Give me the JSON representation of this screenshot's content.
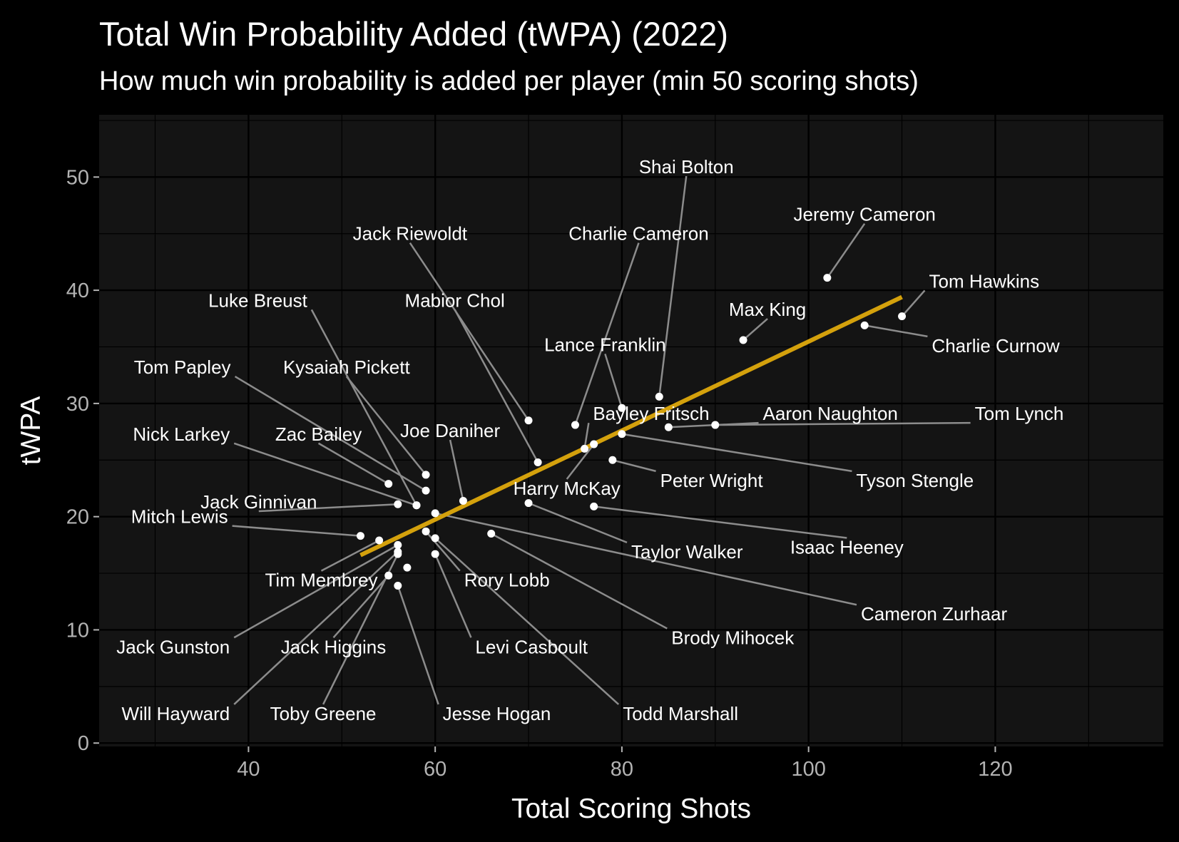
{
  "chart_data": {
    "type": "scatter",
    "title": "Total Win Probability Added (tWPA) (2022)",
    "subtitle": "How much win probability is added per player (min 50 scoring shots)",
    "xlabel": "Total Scoring Shots",
    "ylabel": "tWPA",
    "xlim": [
      24,
      138
    ],
    "ylim": [
      -0.3,
      55.5
    ],
    "x_ticks": [
      40,
      60,
      80,
      100,
      120
    ],
    "y_ticks": [
      0,
      10,
      20,
      30,
      40,
      50
    ],
    "grid": true,
    "legend": "none",
    "trend_line": {
      "x": [
        52,
        110
      ],
      "y": [
        16.6,
        39.4
      ],
      "color": "#d4a10c"
    },
    "colors": {
      "background": "#000000",
      "panel": "#141414",
      "grid": "#000000",
      "point": "#ffffff",
      "connector": "#8c8c8c",
      "tick_text": "#b3b3b3"
    },
    "points": [
      {
        "name": "Shai Bolton",
        "x": 84,
        "y": 30.6,
        "lx": 86.9,
        "ly": 50.9,
        "anchor": "middle"
      },
      {
        "name": "Jeremy Cameron",
        "x": 102,
        "y": 41.1,
        "lx": 106,
        "ly": 46.7,
        "anchor": "middle"
      },
      {
        "name": "Jack Riewoldt",
        "x": 70,
        "y": 28.5,
        "lx": 57.3,
        "ly": 45.0,
        "anchor": "middle"
      },
      {
        "name": "Charlie Cameron",
        "x": 75,
        "y": 28.1,
        "lx": 81.8,
        "ly": 45.0,
        "anchor": "middle"
      },
      {
        "name": "Tom Hawkins",
        "x": 110,
        "y": 37.7,
        "lx": 112.9,
        "ly": 40.8,
        "anchor": "start"
      },
      {
        "name": "Charlie Curnow",
        "x": 106,
        "y": 36.9,
        "lx": 113.2,
        "ly": 35.1,
        "anchor": "start"
      },
      {
        "name": "Max King",
        "x": 93,
        "y": 35.6,
        "lx": 95.6,
        "ly": 38.3,
        "anchor": "middle"
      },
      {
        "name": "Luke Breust",
        "x": 58,
        "y": 21.0,
        "lx": 46.3,
        "ly": 39.1,
        "anchor": "end"
      },
      {
        "name": "Mabior Chol",
        "x": 71,
        "y": 24.8,
        "lx": 62.1,
        "ly": 39.1,
        "anchor": "middle"
      },
      {
        "name": "Lance Franklin",
        "x": 80,
        "y": 29.6,
        "lx": 78.2,
        "ly": 35.2,
        "anchor": "middle"
      },
      {
        "name": "Tom Papley",
        "x": 59,
        "y": 22.3,
        "lx": 38.1,
        "ly": 33.2,
        "anchor": "end"
      },
      {
        "name": "Kysaiah Pickett",
        "x": 59,
        "y": 23.7,
        "lx": 50.5,
        "ly": 33.2,
        "anchor": "middle"
      },
      {
        "name": "Bayley Fritsch",
        "x": 76,
        "y": 26.0,
        "lx": 76.9,
        "ly": 29.1,
        "anchor": "start"
      },
      {
        "name": "Aaron Naughton",
        "x": 85,
        "y": 27.9,
        "lx": 95.1,
        "ly": 29.1,
        "anchor": "start"
      },
      {
        "name": "Tom Lynch",
        "x": 90,
        "y": 28.1,
        "lx": 117.8,
        "ly": 29.1,
        "anchor": "start"
      },
      {
        "name": "Nick Larkey",
        "x": 58,
        "y": 21.0,
        "lx": 38.0,
        "ly": 27.3,
        "anchor": "end"
      },
      {
        "name": "Zac Bailey",
        "x": 55,
        "y": 22.9,
        "lx": 47.5,
        "ly": 27.3,
        "anchor": "middle"
      },
      {
        "name": "Joe Daniher",
        "x": 63,
        "y": 21.4,
        "lx": 61.6,
        "ly": 27.6,
        "anchor": "middle"
      },
      {
        "name": "Harry McKay",
        "x": 77,
        "y": 26.4,
        "lx": 74.1,
        "ly": 22.5,
        "anchor": "middle"
      },
      {
        "name": "Peter Wright",
        "x": 79,
        "y": 25.0,
        "lx": 84.1,
        "ly": 23.2,
        "anchor": "start"
      },
      {
        "name": "Tyson Stengle",
        "x": 80,
        "y": 27.3,
        "lx": 105.1,
        "ly": 23.2,
        "anchor": "start"
      },
      {
        "name": "Jack Ginnivan",
        "x": 56,
        "y": 21.1,
        "lx": 41.1,
        "ly": 21.3,
        "anchor": "middle"
      },
      {
        "name": "Mitch Lewis",
        "x": 52,
        "y": 18.3,
        "lx": 37.8,
        "ly": 20.0,
        "anchor": "end"
      },
      {
        "name": "Isaac Heeney",
        "x": 77,
        "y": 20.9,
        "lx": 104.1,
        "ly": 17.3,
        "anchor": "middle"
      },
      {
        "name": "Taylor Walker",
        "x": 70,
        "y": 21.2,
        "lx": 81.0,
        "ly": 16.9,
        "anchor": "start"
      },
      {
        "name": "Tim Membrey",
        "x": 54,
        "y": 17.9,
        "lx": 47.8,
        "ly": 14.4,
        "anchor": "middle"
      },
      {
        "name": "Rory Lobb",
        "x": 59,
        "y": 18.7,
        "lx": 63.1,
        "ly": 14.4,
        "anchor": "start"
      },
      {
        "name": "Cameron Zurhaar",
        "x": 60,
        "y": 20.3,
        "lx": 105.6,
        "ly": 11.4,
        "anchor": "start"
      },
      {
        "name": "Brody Mihocek",
        "x": 66,
        "y": 18.5,
        "lx": 85.3,
        "ly": 9.3,
        "anchor": "start"
      },
      {
        "name": "Jack Gunston",
        "x": 56,
        "y": 17.5,
        "lx": 38.0,
        "ly": 8.5,
        "anchor": "end"
      },
      {
        "name": "Jack Higgins",
        "x": 55,
        "y": 14.8,
        "lx": 49.1,
        "ly": 8.5,
        "anchor": "middle"
      },
      {
        "name": "Levi Casboult",
        "x": 60,
        "y": 16.7,
        "lx": 64.3,
        "ly": 8.5,
        "anchor": "start"
      },
      {
        "name": "Will Hayward",
        "x": 56,
        "y": 16.9,
        "lx": 38.0,
        "ly": 2.6,
        "anchor": "end"
      },
      {
        "name": "Toby Greene",
        "x": 56,
        "y": 16.7,
        "lx": 48.0,
        "ly": 2.6,
        "anchor": "middle"
      },
      {
        "name": "Jesse Hogan",
        "x": 56,
        "y": 13.9,
        "lx": 60.8,
        "ly": 2.6,
        "anchor": "start"
      },
      {
        "name": "Todd Marshall",
        "x": 60,
        "y": 18.1,
        "lx": 80.1,
        "ly": 2.6,
        "anchor": "start"
      },
      {
        "name": "",
        "x": 57,
        "y": 15.5,
        "lx": 57,
        "ly": 15.5,
        "anchor": "middle"
      }
    ]
  }
}
